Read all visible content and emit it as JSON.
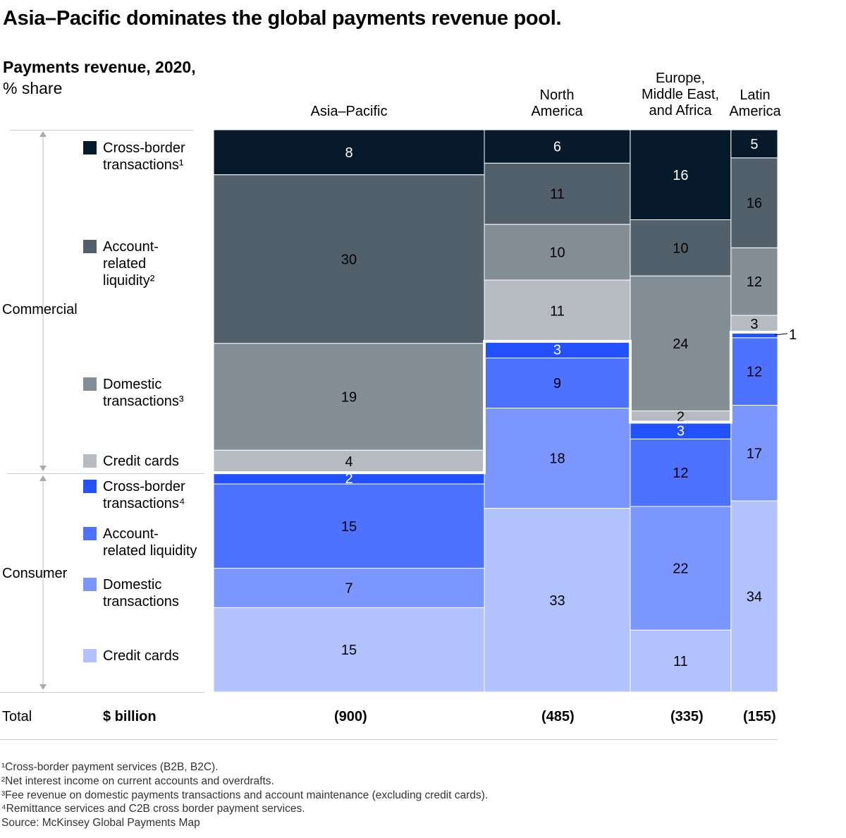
{
  "title": "Asia–Pacific dominates the global payments revenue pool.",
  "subtitle": "Payments revenue, 2020,",
  "unit": "% share",
  "groups": {
    "commercial": "Commercial",
    "consumer": "Consumer"
  },
  "legend": [
    {
      "label": "Cross-border\ntransactions¹",
      "color": "#061a2c"
    },
    {
      "label": "Account-\nrelated\nliquidity²",
      "color": "#52606b"
    },
    {
      "label": "Domestic\ntransactions³",
      "color": "#848e96"
    },
    {
      "label": "Credit cards",
      "color": "#b5bbc1"
    },
    {
      "label": "Cross-border\ntransactions⁴",
      "color": "#2251ff"
    },
    {
      "label": "Account-\nrelated liquidity",
      "color": "#4d72ff"
    },
    {
      "label": "Domestic\ntransactions",
      "color": "#7b97ff"
    },
    {
      "label": "Credit cards",
      "color": "#b1c2ff"
    }
  ],
  "totals": {
    "label": "Total",
    "unit": "$ billion",
    "values": [
      "(900)",
      "(485)",
      "(335)",
      "(155)"
    ]
  },
  "chart_data": {
    "type": "marimekko",
    "categories": [
      "Asia–Pacific",
      "North America",
      "Europe, Middle East, and Africa",
      "Latin America"
    ],
    "widths": [
      900,
      485,
      335,
      155
    ],
    "series": [
      {
        "name": "Commercial cross-border transactions",
        "values": [
          8,
          6,
          16,
          5
        ]
      },
      {
        "name": "Commercial account-related liquidity",
        "values": [
          30,
          11,
          10,
          16
        ]
      },
      {
        "name": "Commercial domestic transactions",
        "values": [
          19,
          10,
          24,
          12
        ]
      },
      {
        "name": "Commercial credit cards",
        "values": [
          4,
          11,
          2,
          3
        ]
      },
      {
        "name": "Consumer cross-border transactions",
        "values": [
          2,
          3,
          3,
          1
        ]
      },
      {
        "name": "Consumer account-related liquidity",
        "values": [
          15,
          9,
          12,
          12
        ]
      },
      {
        "name": "Consumer domestic transactions",
        "values": [
          7,
          18,
          22,
          17
        ]
      },
      {
        "name": "Consumer credit cards",
        "values": [
          15,
          33,
          11,
          34
        ]
      }
    ],
    "ylim": [
      0,
      100
    ]
  },
  "footnotes": [
    "¹Cross-border payment services (B2B, B2C).",
    "²Net interest income on current accounts and overdrafts.",
    "³Fee revenue on domestic payments transactions and account maintenance (excluding credit cards).",
    "⁴Remittance services and C2B cross border payment services.",
    " Source: McKinsey Global Payments Map"
  ]
}
